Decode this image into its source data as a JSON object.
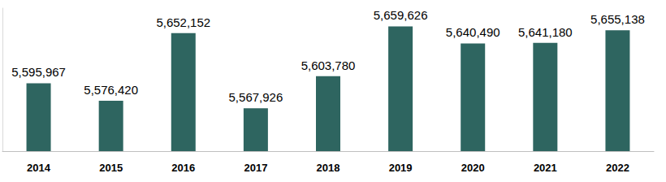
{
  "chart_data": {
    "type": "bar",
    "categories": [
      "2014",
      "2015",
      "2016",
      "2017",
      "2018",
      "2019",
      "2020",
      "2021",
      "2022"
    ],
    "values": [
      5595967,
      5576420,
      5652152,
      5567926,
      5603780,
      5659626,
      5640490,
      5641180,
      5655138
    ],
    "value_labels": [
      "5,595,967",
      "5,576,420",
      "5,652,152",
      "5,567,926",
      "5,603,780",
      "5,659,626",
      "5,640,490",
      "5,641,180",
      "5,655,138"
    ],
    "color": "#2e6560",
    "ylim": [
      5520000,
      5680000
    ],
    "data_labels": true,
    "tick_labels": "x",
    "grid": false
  }
}
